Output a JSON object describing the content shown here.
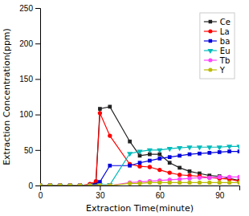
{
  "chart_data": {
    "type": "line",
    "xlabel": "Extraction Time(minute)",
    "ylabel": "Extraction Concentration(ppm)",
    "xlim": [
      0,
      100
    ],
    "ylim": [
      0,
      250
    ],
    "xticks": [
      0,
      30,
      60,
      90
    ],
    "yticks": [
      0,
      50,
      100,
      150,
      200,
      250
    ],
    "series": [
      {
        "name": "Ce",
        "color": "#222222",
        "marker": "square",
        "x": [
          0,
          5,
          10,
          15,
          20,
          25,
          28,
          30,
          35,
          45,
          50,
          55,
          60,
          65,
          70,
          75,
          80,
          85,
          90,
          95,
          100
        ],
        "values": [
          0,
          0,
          0,
          0,
          0,
          1,
          4,
          108,
          111,
          62,
          42,
          44,
          44,
          32,
          25,
          20,
          17,
          14,
          13,
          10,
          7
        ]
      },
      {
        "name": "La",
        "color": "#ff0000",
        "marker": "circle",
        "x": [
          0,
          5,
          10,
          15,
          20,
          25,
          28,
          30,
          35,
          45,
          50,
          55,
          60,
          65,
          70,
          75,
          80,
          85,
          90,
          95,
          100
        ],
        "values": [
          0,
          0,
          0,
          0,
          0,
          2,
          6,
          102,
          70,
          30,
          27,
          26,
          22,
          18,
          15,
          14,
          13,
          11,
          10,
          9,
          6
        ]
      },
      {
        "name": "ba",
        "color": "#0000dd",
        "marker": "square",
        "x": [
          0,
          5,
          10,
          15,
          20,
          25,
          30,
          35,
          45,
          50,
          55,
          60,
          65,
          70,
          75,
          80,
          85,
          90,
          95,
          100
        ],
        "values": [
          0,
          0,
          0,
          0,
          0,
          0,
          5,
          28,
          28,
          32,
          35,
          38,
          40,
          42,
          44,
          45,
          46,
          47,
          48,
          48
        ]
      },
      {
        "name": "Eu",
        "color": "#00bbbb",
        "marker": "triangle-down",
        "x": [
          0,
          5,
          10,
          15,
          20,
          25,
          30,
          35,
          45,
          50,
          55,
          60,
          65,
          70,
          75,
          80,
          85,
          90,
          95,
          100
        ],
        "values": [
          0,
          0,
          0,
          0,
          0,
          0,
          1,
          1,
          45,
          48,
          50,
          50,
          52,
          53,
          54,
          54,
          54,
          54,
          55,
          55
        ]
      },
      {
        "name": "Tb",
        "color": "#ff44ff",
        "marker": "circle",
        "x": [
          0,
          5,
          10,
          15,
          20,
          25,
          30,
          35,
          45,
          50,
          55,
          60,
          65,
          70,
          75,
          80,
          85,
          90,
          95,
          100
        ],
        "values": [
          0,
          0,
          0,
          0,
          0,
          0,
          0,
          0,
          4,
          5,
          6,
          7,
          8,
          9,
          10,
          11,
          11,
          12,
          12,
          12
        ]
      },
      {
        "name": "Y",
        "color": "#bbbb00",
        "marker": "circle",
        "x": [
          0,
          5,
          10,
          15,
          20,
          25,
          30,
          35,
          45,
          50,
          55,
          60,
          65,
          70,
          75,
          80,
          85,
          90,
          95,
          100
        ],
        "values": [
          0,
          0,
          0,
          0,
          0,
          0,
          0,
          0,
          3,
          3,
          4,
          4,
          4,
          4,
          4,
          4,
          4,
          4,
          4,
          4
        ]
      }
    ],
    "legend": "upper right",
    "grid": false
  }
}
